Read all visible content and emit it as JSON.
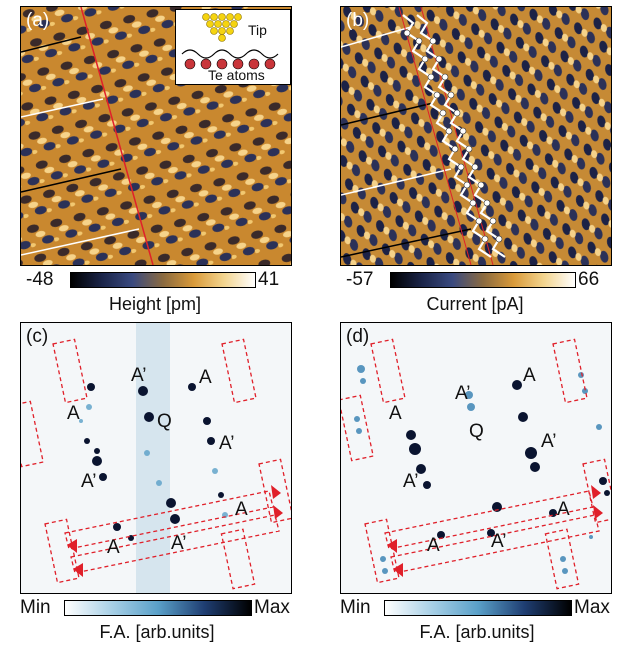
{
  "panels": {
    "a": {
      "label": "(a)",
      "inset_tip": "Tip",
      "inset_atoms": "Te atoms"
    },
    "b": {
      "label": "(b)"
    },
    "c": {
      "label": "(c)",
      "labels": [
        {
          "text": "A’"
        },
        {
          "text": "Q"
        },
        {
          "text": "A"
        },
        {
          "text": "A"
        },
        {
          "text": "A’"
        },
        {
          "text": "A’"
        },
        {
          "text": "A"
        },
        {
          "text": "A"
        },
        {
          "text": "A’"
        }
      ]
    },
    "d": {
      "label": "(d)",
      "labels": [
        {
          "text": "A’"
        },
        {
          "text": "Q"
        },
        {
          "text": "A"
        },
        {
          "text": "A"
        },
        {
          "text": "A’"
        },
        {
          "text": "A’"
        },
        {
          "text": "A"
        },
        {
          "text": "A"
        },
        {
          "text": "A’"
        }
      ]
    }
  },
  "colorbars": {
    "a": {
      "min": "-48",
      "max": "41",
      "title": "Height [pm]"
    },
    "b": {
      "min": "-57",
      "max": "66",
      "title": "Current [pA]"
    },
    "c": {
      "min": "Min",
      "max": "Max",
      "title": "F.A. [arb.units]"
    },
    "d": {
      "min": "Min",
      "max": "Max",
      "title": "F.A. [arb.units]"
    }
  },
  "colors": {
    "stm_dark": "#1a2448",
    "stm_orange": "#d99a3a",
    "stm_light": "#fff4d8",
    "fa_blue": "#5aa0c8",
    "fa_dark": "#0a1430",
    "annotation_red": "#e0202a"
  }
}
